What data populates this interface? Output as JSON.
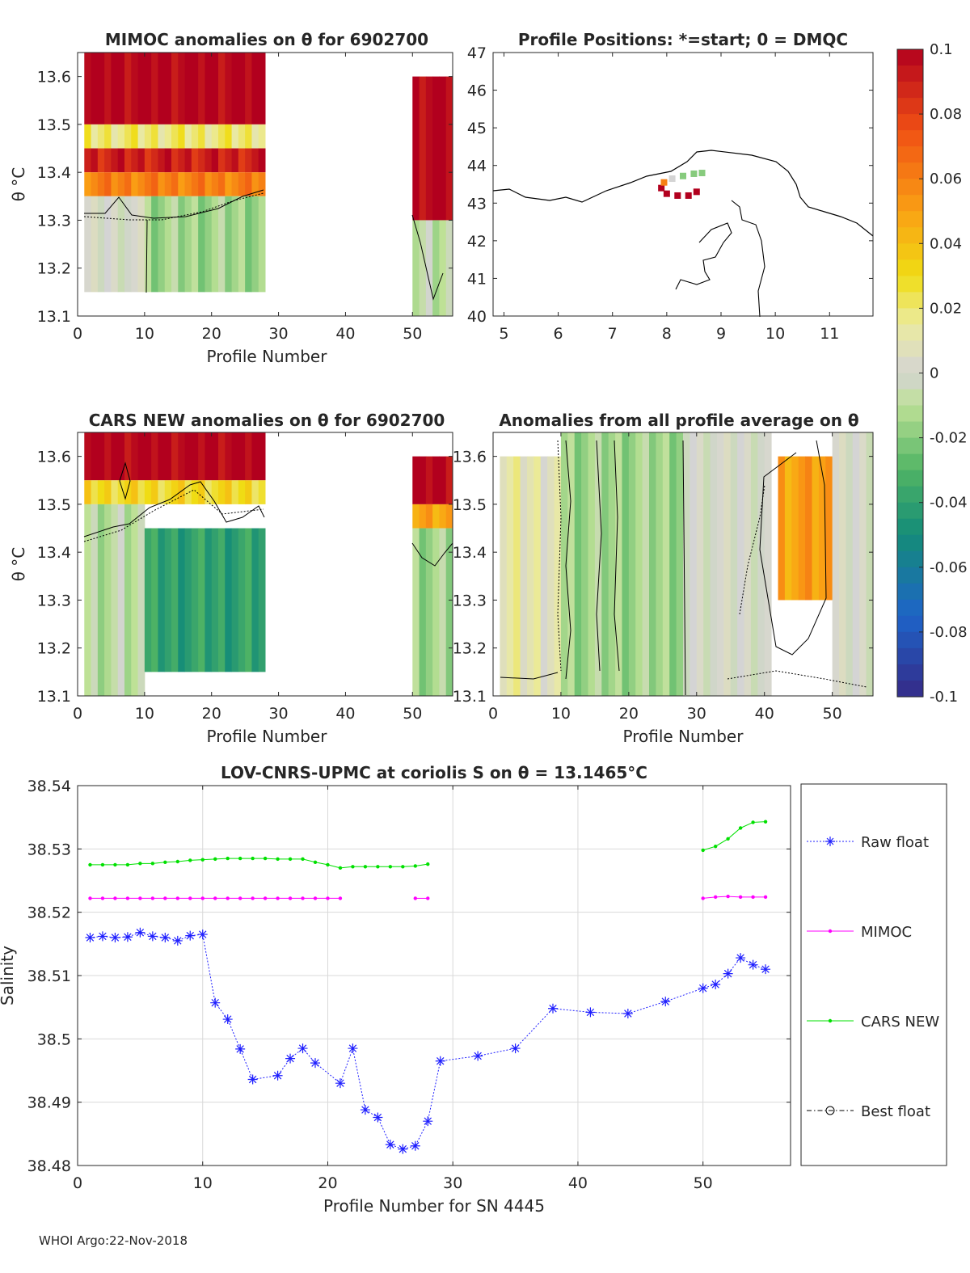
{
  "footer": "WHOI Argo:22-Nov-2018",
  "colors": {
    "raw": "#1f1fff",
    "mimoc": "#ff00ff",
    "cars": "#00e000",
    "best": "#000000",
    "neutral": "#d4d4d4",
    "grid": "#d9d9d9"
  },
  "colorbar": {
    "ticks": [
      "0.1",
      "0.08",
      "0.06",
      "0.04",
      "0.02",
      "0",
      "-0.02",
      "-0.04",
      "-0.06",
      "-0.08",
      "-0.1"
    ],
    "range": [
      -0.1,
      0.1
    ]
  },
  "chart_data": [
    {
      "id": "mimoc",
      "type": "heatmap",
      "title": "MIMOC anomalies on θ  for 6902700",
      "xlabel": "Profile Number",
      "ylabel": "θ °C",
      "xlim": [
        0,
        56
      ],
      "ylim": [
        13.1,
        13.65
      ],
      "xticks": [
        "0",
        "10",
        "20",
        "30",
        "40",
        "50"
      ],
      "yticks": [
        "13.1",
        "13.2",
        "13.3",
        "13.4",
        "13.5",
        "13.6"
      ],
      "y_levels": [
        13.2,
        13.3,
        13.4,
        13.5,
        13.6
      ],
      "bands": [
        {
          "x": [
            1,
            28
          ],
          "y": [
            13.5,
            13.65
          ],
          "value": 0.1
        },
        {
          "x": [
            1,
            28
          ],
          "y": [
            13.45,
            13.5
          ],
          "value": 0.02
        },
        {
          "x": [
            1,
            28
          ],
          "y": [
            13.4,
            13.45
          ],
          "value": 0.09
        },
        {
          "x": [
            1,
            28
          ],
          "y": [
            13.35,
            13.4
          ],
          "value": 0.06
        },
        {
          "x": [
            1,
            10
          ],
          "y": [
            13.15,
            13.35
          ],
          "value": 0.0
        },
        {
          "x": [
            10,
            28
          ],
          "y": [
            13.15,
            13.35
          ],
          "value": -0.015
        },
        {
          "x": [
            50,
            56
          ],
          "y": [
            13.3,
            13.6
          ],
          "value": 0.1
        },
        {
          "x": [
            50,
            56
          ],
          "y": [
            13.1,
            13.3
          ],
          "value": -0.01
        }
      ]
    },
    {
      "id": "positions",
      "type": "scatter",
      "title": "Profile Positions: *=start; 0 = DMQC",
      "xlim": [
        4.8,
        11.8
      ],
      "ylim": [
        40,
        47
      ],
      "xticks": [
        "5",
        "6",
        "7",
        "8",
        "9",
        "10",
        "11"
      ],
      "yticks": [
        "40",
        "41",
        "42",
        "43",
        "44",
        "45",
        "46",
        "47"
      ],
      "track": [
        {
          "lon": 7.9,
          "lat": 43.4,
          "value": 0.1
        },
        {
          "lon": 8.0,
          "lat": 43.25,
          "value": 0.1
        },
        {
          "lon": 8.2,
          "lat": 43.2,
          "value": 0.1
        },
        {
          "lon": 8.4,
          "lat": 43.2,
          "value": 0.1
        },
        {
          "lon": 8.55,
          "lat": 43.3,
          "value": 0.1
        },
        {
          "lon": 7.95,
          "lat": 43.55,
          "value": 0.06
        },
        {
          "lon": 8.1,
          "lat": 43.65,
          "value": 0.0
        },
        {
          "lon": 8.3,
          "lat": 43.72,
          "value": -0.02
        },
        {
          "lon": 8.5,
          "lat": 43.78,
          "value": -0.02
        },
        {
          "lon": 8.65,
          "lat": 43.8,
          "value": -0.02
        }
      ]
    },
    {
      "id": "cars",
      "type": "heatmap",
      "title": "CARS NEW anomalies on θ for 6902700",
      "xlabel": "Profile Number",
      "ylabel": "θ °C",
      "xlim": [
        0,
        56
      ],
      "ylim": [
        13.1,
        13.65
      ],
      "xticks": [
        "0",
        "10",
        "20",
        "30",
        "40",
        "50"
      ],
      "yticks": [
        "13.1",
        "13.2",
        "13.3",
        "13.4",
        "13.5",
        "13.6"
      ],
      "bands": [
        {
          "x": [
            1,
            28
          ],
          "y": [
            13.55,
            13.65
          ],
          "value": 0.1
        },
        {
          "x": [
            1,
            28
          ],
          "y": [
            13.5,
            13.55
          ],
          "value": 0.03
        },
        {
          "x": [
            1,
            10
          ],
          "y": [
            13.1,
            13.5
          ],
          "value": -0.01
        },
        {
          "x": [
            10,
            28
          ],
          "y": [
            13.15,
            13.45
          ],
          "value": -0.04
        },
        {
          "x": [
            50,
            56
          ],
          "y": [
            13.5,
            13.6
          ],
          "value": 0.1
        },
        {
          "x": [
            50,
            56
          ],
          "y": [
            13.45,
            13.5
          ],
          "value": 0.05
        },
        {
          "x": [
            50,
            56
          ],
          "y": [
            13.1,
            13.45
          ],
          "value": -0.015
        }
      ]
    },
    {
      "id": "allavg",
      "type": "heatmap",
      "title": "Anomalies from all profile average on θ",
      "xlabel": "Profile Number",
      "xlim": [
        0,
        56
      ],
      "ylim": [
        13.1,
        13.65
      ],
      "xticks": [
        "0",
        "10",
        "20",
        "30",
        "40",
        "50"
      ],
      "yticks": [
        "13.1",
        "13.2",
        "13.3",
        "13.4",
        "13.5",
        "13.6"
      ],
      "bands": [
        {
          "x": [
            1,
            10
          ],
          "y": [
            13.1,
            13.6
          ],
          "value": 0.01
        },
        {
          "x": [
            10,
            28
          ],
          "y": [
            13.1,
            13.65
          ],
          "value": -0.015
        },
        {
          "x": [
            28,
            41
          ],
          "y": [
            13.1,
            13.65
          ],
          "value": 0.0
        },
        {
          "x": [
            42,
            50
          ],
          "y": [
            13.3,
            13.6
          ],
          "value": 0.05
        },
        {
          "x": [
            50,
            56
          ],
          "y": [
            13.1,
            13.65
          ],
          "value": 0.0
        }
      ]
    },
    {
      "id": "salinity",
      "type": "line",
      "title": "LOV-CNRS-UPMC at coriolis S on θ = 13.1465°C",
      "xlabel": "Profile Number for SN 4445",
      "ylabel": "Salinity",
      "xlim": [
        0,
        57
      ],
      "ylim": [
        38.48,
        38.54
      ],
      "xticks": [
        "0",
        "10",
        "20",
        "30",
        "40",
        "50"
      ],
      "yticks": [
        "38.48",
        "38.49",
        "38.5",
        "38.51",
        "38.52",
        "38.53",
        "38.54"
      ],
      "legend_position": "outside-right",
      "series": [
        {
          "name": "Raw float",
          "style": "dotted-star",
          "x": [
            1,
            2,
            3,
            4,
            5,
            6,
            7,
            8,
            9,
            10,
            11,
            12,
            13,
            14,
            16,
            17,
            18,
            19,
            21,
            22,
            23,
            24,
            25,
            26,
            27,
            28,
            29,
            32,
            35,
            38,
            41,
            44,
            47,
            50,
            51,
            52,
            53,
            54,
            55
          ],
          "y": [
            38.516,
            38.5162,
            38.516,
            38.5161,
            38.5168,
            38.5162,
            38.516,
            38.5155,
            38.5163,
            38.5165,
            38.5057,
            38.5031,
            38.4984,
            38.4936,
            38.4942,
            38.4969,
            38.4985,
            38.4962,
            38.493,
            38.4985,
            38.4888,
            38.4876,
            38.4833,
            38.4826,
            38.4831,
            38.487,
            38.4965,
            38.4973,
            38.4985,
            38.5048,
            38.5042,
            38.504,
            38.5059,
            38.508,
            38.5086,
            38.5103,
            38.5128,
            38.5117,
            38.511
          ]
        },
        {
          "name": "MIMOC",
          "style": "solid-dot",
          "segments": [
            {
              "x": [
                1,
                2,
                3,
                4,
                5,
                6,
                7,
                8,
                9,
                10,
                11,
                12,
                13,
                14,
                15,
                16,
                17,
                18,
                19,
                20,
                21
              ],
              "y": [
                38.5222,
                38.5222,
                38.5222,
                38.5222,
                38.5222,
                38.5222,
                38.5222,
                38.5222,
                38.5222,
                38.5222,
                38.5222,
                38.5222,
                38.5222,
                38.5222,
                38.5222,
                38.5222,
                38.5222,
                38.5222,
                38.5222,
                38.5222,
                38.5222
              ]
            },
            {
              "x": [
                27,
                28
              ],
              "y": [
                38.5222,
                38.5222
              ]
            },
            {
              "x": [
                50,
                51,
                52,
                53,
                54,
                55
              ],
              "y": [
                38.5222,
                38.5224,
                38.5225,
                38.5224,
                38.5224,
                38.5224
              ]
            }
          ]
        },
        {
          "name": "CARS NEW",
          "style": "solid-dot",
          "segments": [
            {
              "x": [
                1,
                2,
                3,
                4,
                5,
                6,
                7,
                8,
                9,
                10,
                11,
                12,
                13,
                14,
                15,
                16,
                17,
                18,
                19,
                20,
                21,
                22,
                23,
                24,
                25,
                26,
                27,
                28
              ],
              "y": [
                38.5275,
                38.5275,
                38.5275,
                38.5275,
                38.5277,
                38.5277,
                38.5279,
                38.528,
                38.5282,
                38.5283,
                38.5284,
                38.5285,
                38.5285,
                38.5285,
                38.5285,
                38.5284,
                38.5284,
                38.5284,
                38.5279,
                38.5275,
                38.527,
                38.5272,
                38.5272,
                38.5272,
                38.5272,
                38.5272,
                38.5273,
                38.5276
              ]
            },
            {
              "x": [
                50,
                51,
                52,
                53,
                54,
                55
              ],
              "y": [
                38.5298,
                38.5304,
                38.5316,
                38.5333,
                38.5342,
                38.5343
              ]
            }
          ]
        },
        {
          "name": "Best float",
          "style": "dashdot-circle",
          "x": [],
          "y": []
        }
      ]
    }
  ]
}
